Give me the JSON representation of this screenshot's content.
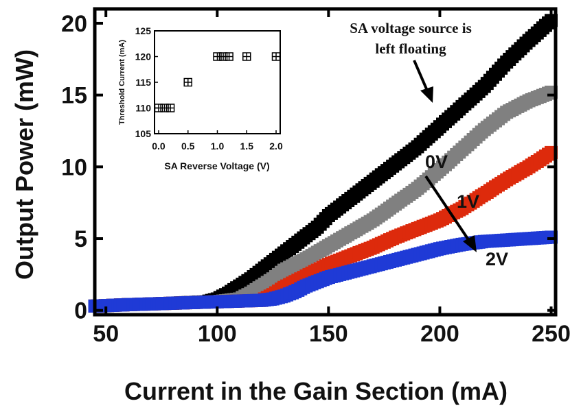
{
  "chart_data": [
    {
      "type": "scatter",
      "title": "",
      "xlabel": "Current  in the Gain Section (mA)",
      "ylabel": "Output Power (mW)",
      "xlim": [
        45,
        252
      ],
      "ylim": [
        -0.3,
        21
      ],
      "xticks": [
        50,
        100,
        150,
        200,
        250
      ],
      "yticks": [
        0,
        5,
        10,
        15,
        20
      ],
      "grid": false,
      "legend": "none",
      "series": [
        {
          "color": "#000000",
          "marker": "filled-square",
          "x": [
            45,
            60,
            80,
            95,
            100,
            105,
            110,
            115,
            120,
            125,
            130,
            135,
            140,
            145,
            150,
            160,
            170,
            180,
            190,
            200,
            210,
            220,
            230,
            240,
            250
          ],
          "y": [
            0.3,
            0.4,
            0.5,
            0.6,
            0.8,
            1.2,
            1.7,
            2.2,
            2.8,
            3.4,
            4.0,
            4.6,
            5.2,
            5.8,
            6.6,
            7.8,
            9.0,
            10.2,
            11.4,
            12.8,
            14.2,
            15.6,
            17.3,
            18.8,
            20.2
          ]
        },
        {
          "color": "#808080",
          "marker": "filled-square",
          "x": [
            45,
            60,
            80,
            100,
            110,
            115,
            120,
            125,
            130,
            140,
            150,
            160,
            170,
            180,
            190,
            200,
            210,
            220,
            230,
            240,
            250
          ],
          "y": [
            0.3,
            0.4,
            0.5,
            0.6,
            0.8,
            1.2,
            1.7,
            2.2,
            2.8,
            3.6,
            4.5,
            5.4,
            6.3,
            7.4,
            8.5,
            9.8,
            11.2,
            12.6,
            13.8,
            14.6,
            15.2
          ]
        },
        {
          "color": "#dd2a0c",
          "marker": "filled-square",
          "x": [
            45,
            60,
            80,
            100,
            120,
            125,
            130,
            135,
            140,
            145,
            150,
            160,
            170,
            180,
            190,
            200,
            210,
            220,
            230,
            240,
            250
          ],
          "y": [
            0.3,
            0.4,
            0.5,
            0.6,
            0.7,
            1.1,
            1.6,
            2.0,
            2.4,
            2.8,
            3.2,
            3.8,
            4.4,
            5.1,
            5.7,
            6.3,
            7.1,
            8.1,
            9.1,
            10.0,
            11.0
          ]
        },
        {
          "color": "#1f3ad6",
          "marker": "filled-square",
          "x": [
            45,
            60,
            80,
            100,
            120,
            125,
            130,
            135,
            140,
            145,
            150,
            160,
            170,
            180,
            190,
            200,
            210,
            220,
            230,
            240,
            250
          ],
          "y": [
            0.3,
            0.4,
            0.5,
            0.6,
            0.7,
            0.8,
            1.0,
            1.3,
            1.7,
            2.0,
            2.3,
            2.7,
            3.1,
            3.5,
            3.9,
            4.3,
            4.6,
            4.8,
            4.9,
            5.0,
            5.1
          ]
        }
      ],
      "annotations": [
        {
          "text_lines": [
            "SA voltage source is",
            "left floating"
          ]
        },
        {
          "text": "0V"
        },
        {
          "text": "1V"
        },
        {
          "text": "2V"
        }
      ]
    },
    {
      "type": "scatter",
      "title": "",
      "xlabel": "SA Reverse  Voltage (V)",
      "ylabel": "Threshold Current (mA)",
      "xlim": [
        -0.07,
        2.07
      ],
      "ylim": [
        105,
        125
      ],
      "xticks": [
        "0.0",
        "0.5",
        "1.0",
        "1.5",
        "2.0"
      ],
      "yticks": [
        "105",
        "110",
        "115",
        "120",
        "125"
      ],
      "grid": false,
      "legend": "none",
      "series": [
        {
          "color": "#000000",
          "marker": "open-square-cross",
          "x": [
            0.0,
            0.1,
            0.2,
            0.5,
            1.0,
            1.1,
            1.2,
            1.5,
            2.0
          ],
          "y": [
            110,
            110,
            110,
            115,
            120,
            120,
            120,
            120,
            120
          ]
        }
      ]
    }
  ]
}
